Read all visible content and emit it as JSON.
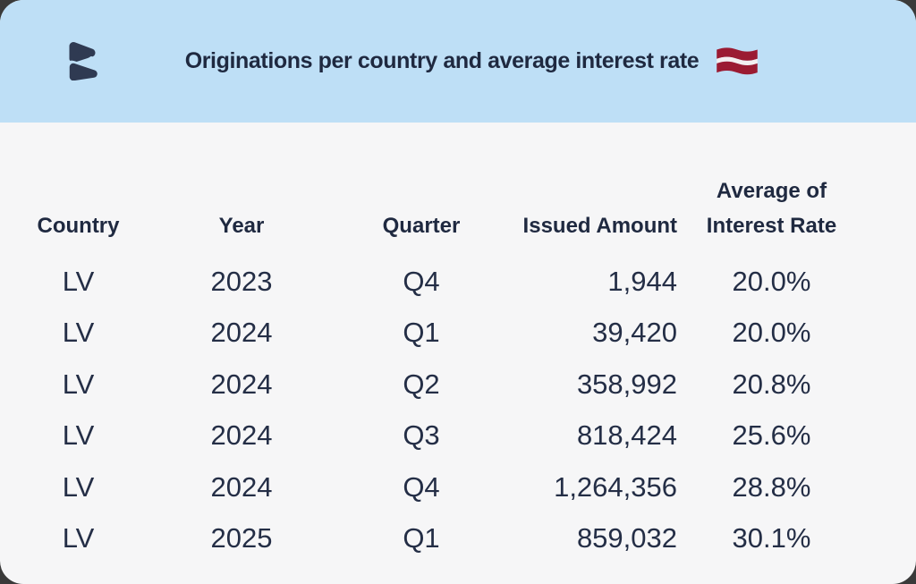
{
  "card": {
    "title": "Originations per country and average interest rate"
  },
  "table": {
    "column_keys": [
      "country",
      "year",
      "quarter",
      "issued_amount",
      "avg_interest_rate"
    ],
    "columns": [
      "Country",
      "Year",
      "Quarter",
      "Issued Amount",
      "Average of Interest Rate"
    ],
    "rows": [
      [
        "LV",
        "2023",
        "Q4",
        "1,944",
        "20.0%"
      ],
      [
        "LV",
        "2024",
        "Q1",
        "39,420",
        "20.0%"
      ],
      [
        "LV",
        "2024",
        "Q2",
        "358,992",
        "20.8%"
      ],
      [
        "LV",
        "2024",
        "Q3",
        "818,424",
        "25.6%"
      ],
      [
        "LV",
        "2024",
        "Q4",
        "1,264,356",
        "28.8%"
      ],
      [
        "LV",
        "2025",
        "Q1",
        "859,032",
        "30.1%"
      ]
    ]
  },
  "chart_data": {
    "type": "table",
    "title": "Originations per country and average interest rate",
    "country": "LV",
    "categories": [
      "2023 Q4",
      "2024 Q1",
      "2024 Q2",
      "2024 Q3",
      "2024 Q4",
      "2025 Q1"
    ],
    "series": [
      {
        "name": "Issued Amount",
        "values": [
          1944,
          39420,
          358992,
          818424,
          1264356,
          859032
        ]
      },
      {
        "name": "Average of Interest Rate (%)",
        "values": [
          20.0,
          20.0,
          20.8,
          25.6,
          28.8,
          30.1
        ]
      }
    ],
    "legend_position": "none",
    "grid": false
  },
  "colors": {
    "banner": "#BEDFF6",
    "text": "#242E46",
    "title_text": "#1F2940",
    "card_background": "#F6F6F7",
    "logo": "#2F3A52",
    "flag_red": "#9B1B32",
    "flag_white": "#F3EFF0"
  }
}
